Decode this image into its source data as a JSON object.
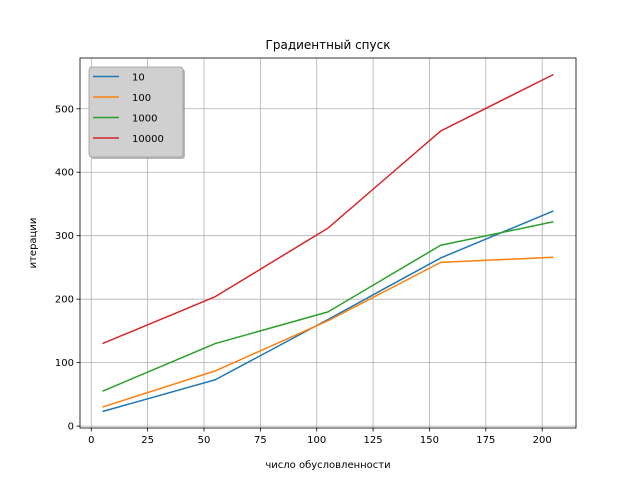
{
  "chart_data": {
    "type": "line",
    "title": "Градиентный спуск",
    "xlabel": "число обусловленности",
    "ylabel": "итерации",
    "xlim": [
      -5.0,
      215.0
    ],
    "ylim": [
      -3.0,
      580.0
    ],
    "xticks": [
      0,
      25,
      50,
      75,
      100,
      125,
      150,
      175,
      200
    ],
    "yticks": [
      0,
      100,
      200,
      300,
      400,
      500
    ],
    "grid": true,
    "legend_position": "top-left",
    "x": [
      5,
      55,
      105,
      155,
      205
    ],
    "series": [
      {
        "name": "10",
        "color": "#1f77b4",
        "values": [
          23,
          73,
          168,
          265,
          339
        ]
      },
      {
        "name": "100",
        "color": "#ff7f0e",
        "values": [
          30,
          87,
          166,
          258,
          266
        ]
      },
      {
        "name": "1000",
        "color": "#2ca02c",
        "values": [
          55,
          130,
          180,
          285,
          322
        ]
      },
      {
        "name": "10000",
        "color": "#d62728",
        "values": [
          130,
          204,
          312,
          465,
          554
        ]
      }
    ]
  }
}
